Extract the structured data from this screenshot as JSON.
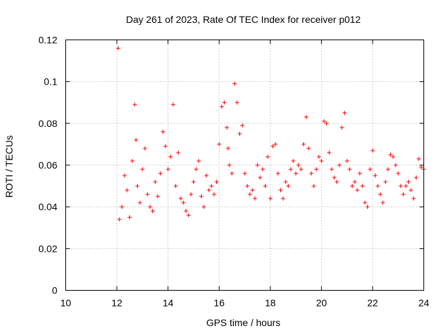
{
  "chart_data": {
    "type": "scatter",
    "title": "Day 261 of 2023, Rate Of TEC Index for receiver p012",
    "xlabel": "GPS time / hours",
    "ylabel": "ROTI / TECUs",
    "xlim": [
      10,
      24
    ],
    "ylim": [
      0,
      0.12
    ],
    "x_ticks": [
      "10",
      "12",
      "14",
      "16",
      "18",
      "20",
      "22",
      "24"
    ],
    "y_ticks": [
      "0",
      "0.02",
      "0.04",
      "0.06",
      "0.08",
      "0.1",
      "0.12"
    ],
    "grid": true,
    "marker": "plus",
    "marker_color": "#ff0000",
    "series": [
      {
        "x": [
          12.05,
          12.1,
          12.2,
          12.3,
          12.4,
          12.5,
          12.6,
          12.7,
          12.75,
          12.8,
          12.9,
          13.0,
          13.1,
          13.2,
          13.3,
          13.4,
          13.5,
          13.6,
          13.7,
          13.8,
          13.9,
          14.0,
          14.1,
          14.2,
          14.3,
          14.4,
          14.5,
          14.6,
          14.7,
          14.8,
          14.9,
          15.0,
          15.1,
          15.2,
          15.3,
          15.4,
          15.5,
          15.6,
          15.7,
          15.8,
          15.9,
          16.0,
          16.1,
          16.2,
          16.3,
          16.35,
          16.4,
          16.5,
          16.6,
          16.7,
          16.8,
          16.9,
          17.0,
          17.1,
          17.2,
          17.3,
          17.4,
          17.5,
          17.6,
          17.7,
          17.8,
          17.9,
          18.0,
          18.1,
          18.2,
          18.3,
          18.4,
          18.5,
          18.6,
          18.7,
          18.8,
          18.9,
          19.0,
          19.1,
          19.2,
          19.3,
          19.4,
          19.5,
          19.6,
          19.7,
          19.8,
          19.9,
          20.0,
          20.1,
          20.2,
          20.3,
          20.4,
          20.5,
          20.6,
          20.7,
          20.8,
          20.9,
          21.0,
          21.1,
          21.2,
          21.3,
          21.4,
          21.5,
          21.6,
          21.7,
          21.8,
          21.9,
          22.0,
          22.1,
          22.2,
          22.3,
          22.4,
          22.5,
          22.6,
          22.7,
          22.8,
          22.9,
          23.0,
          23.1,
          23.2,
          23.3,
          23.4,
          23.5,
          23.6,
          23.7,
          23.8,
          23.9,
          24.0
        ],
        "y": [
          0.116,
          0.034,
          0.04,
          0.055,
          0.048,
          0.035,
          0.062,
          0.089,
          0.072,
          0.05,
          0.042,
          0.058,
          0.068,
          0.046,
          0.04,
          0.038,
          0.052,
          0.045,
          0.056,
          0.076,
          0.069,
          0.058,
          0.064,
          0.089,
          0.05,
          0.066,
          0.044,
          0.042,
          0.038,
          0.036,
          0.046,
          0.052,
          0.058,
          0.062,
          0.045,
          0.04,
          0.055,
          0.048,
          0.05,
          0.046,
          0.052,
          0.07,
          0.088,
          0.09,
          0.078,
          0.068,
          0.06,
          0.056,
          0.099,
          0.09,
          0.075,
          0.079,
          0.056,
          0.05,
          0.046,
          0.048,
          0.044,
          0.06,
          0.054,
          0.058,
          0.05,
          0.064,
          0.044,
          0.069,
          0.07,
          0.056,
          0.048,
          0.044,
          0.052,
          0.05,
          0.058,
          0.062,
          0.056,
          0.06,
          0.058,
          0.07,
          0.083,
          0.068,
          0.056,
          0.05,
          0.058,
          0.064,
          0.062,
          0.081,
          0.08,
          0.066,
          0.058,
          0.054,
          0.052,
          0.06,
          0.078,
          0.085,
          0.062,
          0.058,
          0.05,
          0.052,
          0.048,
          0.056,
          0.05,
          0.042,
          0.04,
          0.058,
          0.067,
          0.055,
          0.05,
          0.046,
          0.042,
          0.052,
          0.058,
          0.065,
          0.064,
          0.06,
          0.056,
          0.05,
          0.046,
          0.05,
          0.052,
          0.048,
          0.044,
          0.054,
          0.063,
          0.059,
          0.058
        ]
      }
    ]
  }
}
